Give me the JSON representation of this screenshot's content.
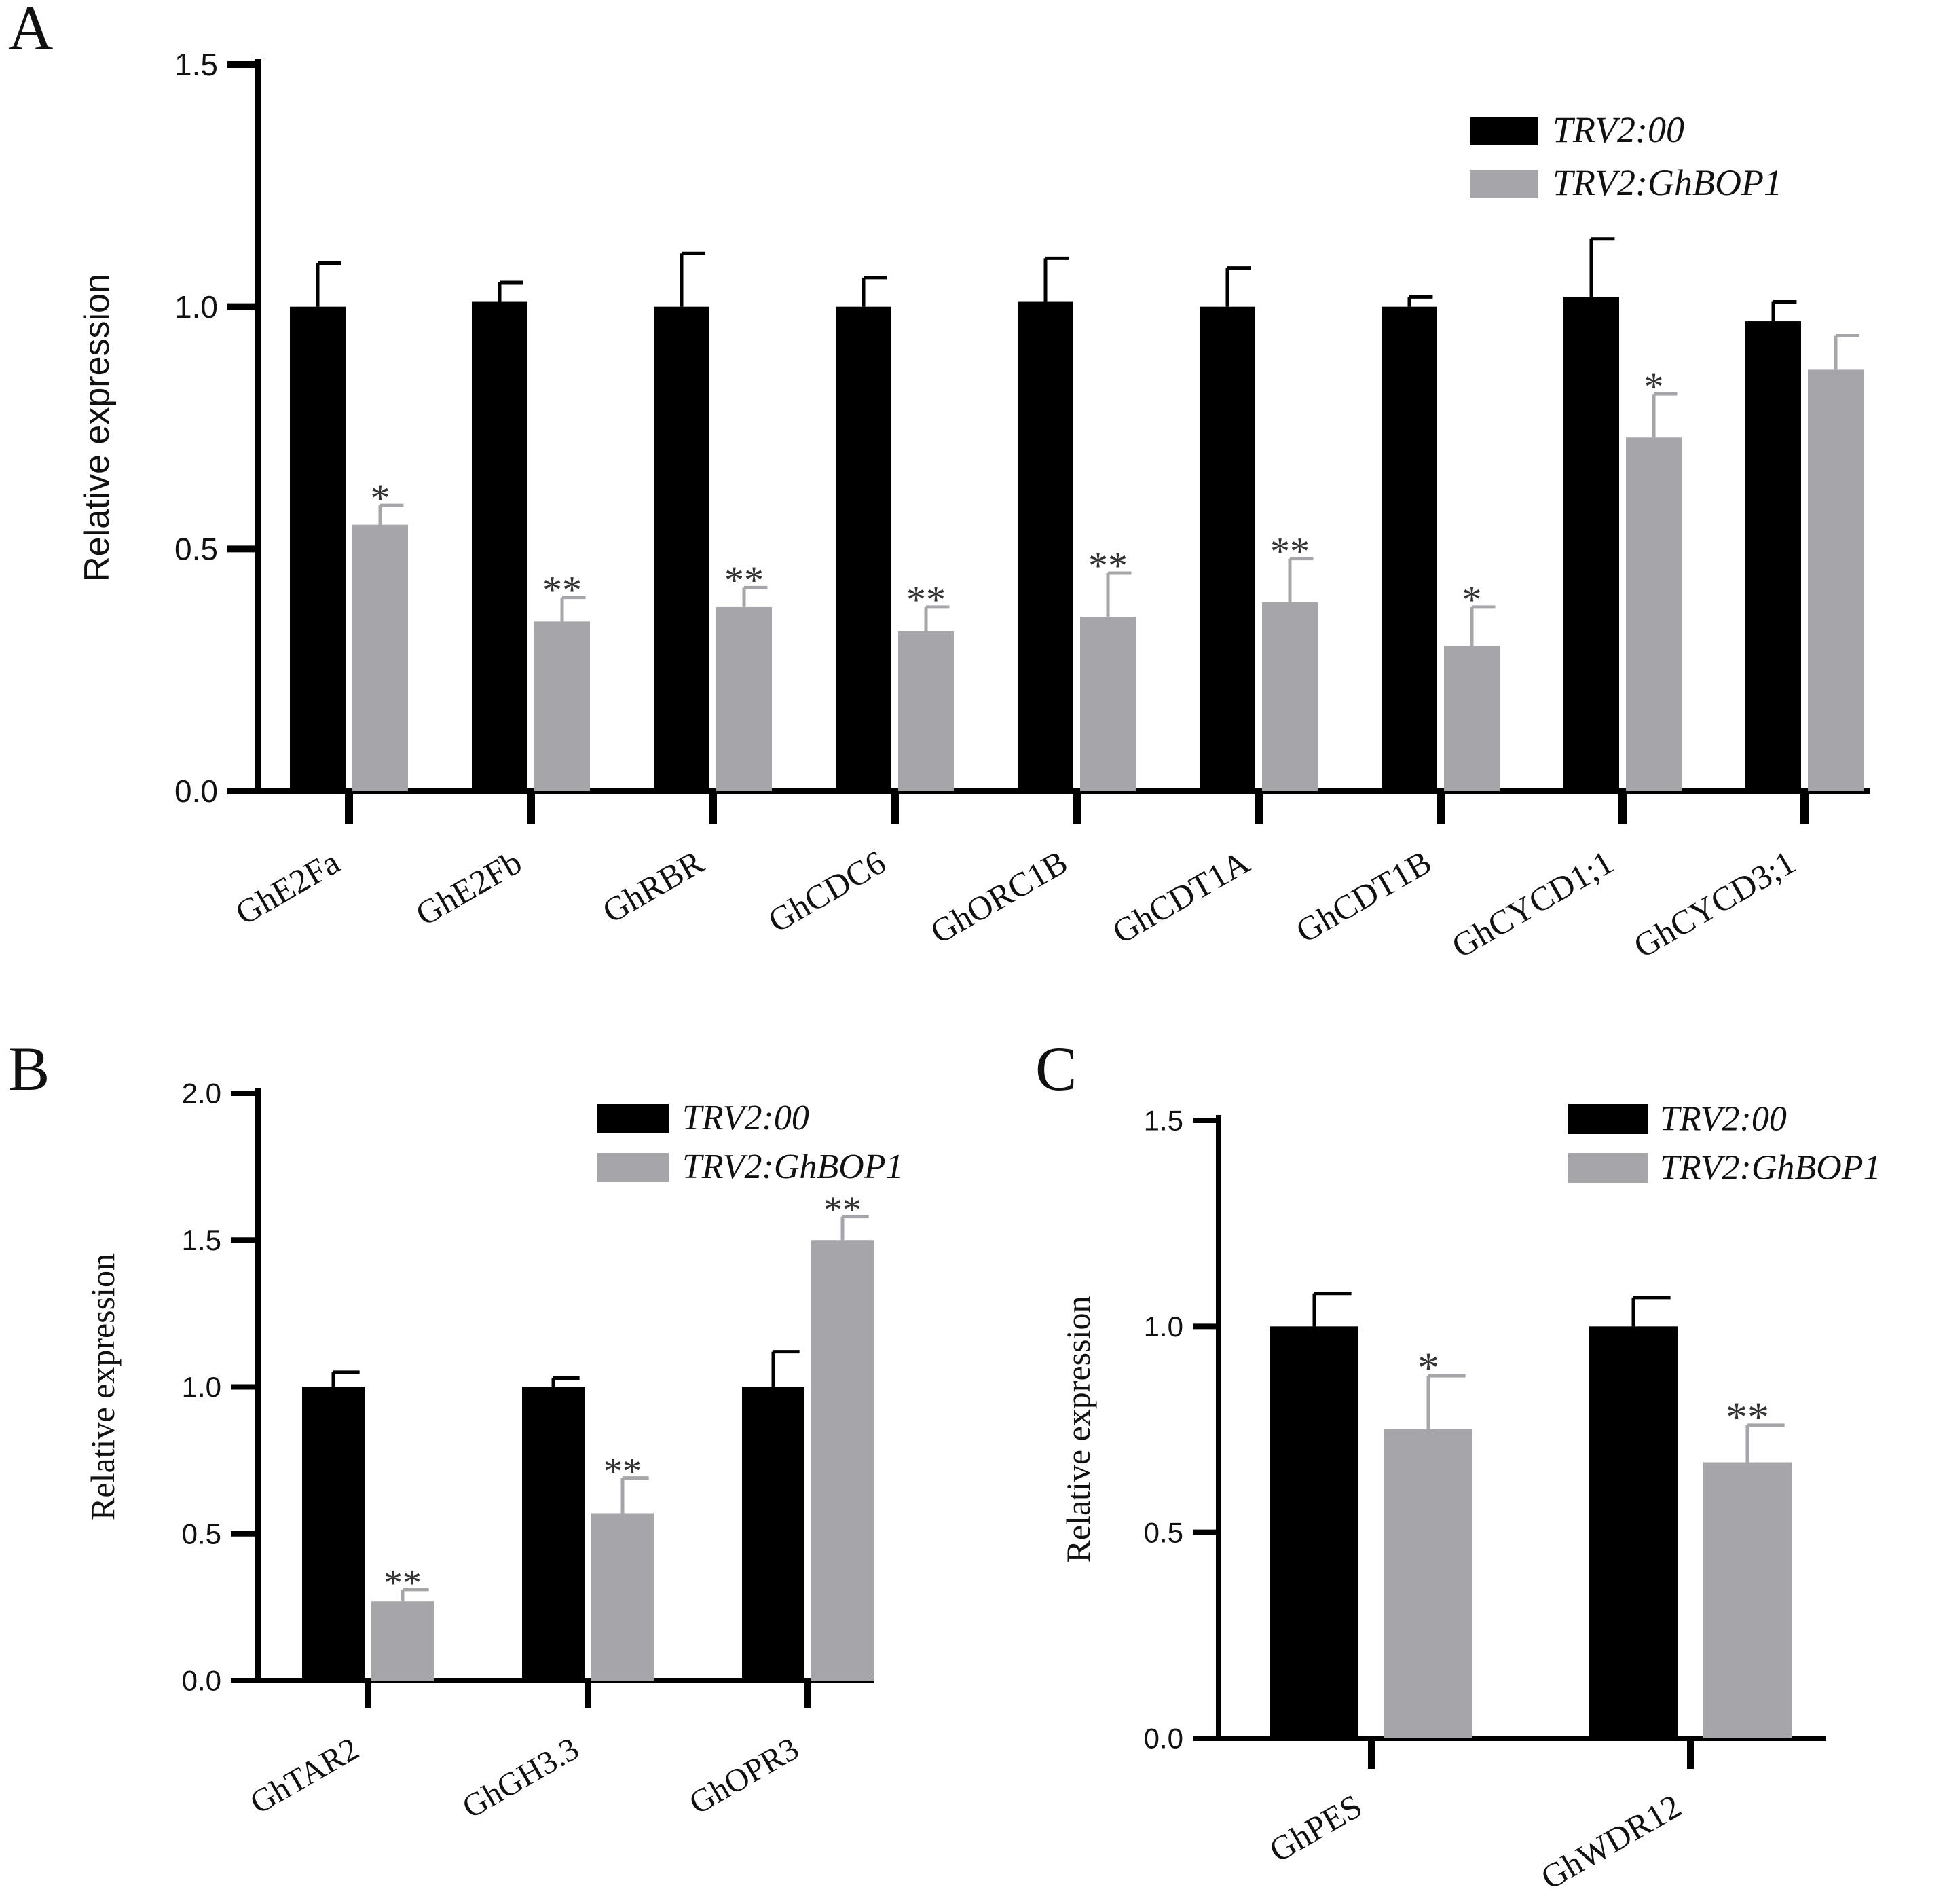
{
  "figure": {
    "colors": {
      "control": "#000000",
      "treatment": "#a6a6aa",
      "axis": "#000000",
      "text": "#111111"
    },
    "legend": {
      "control": "TRV2:00",
      "treatment": "TRV2:GhBOP1"
    }
  },
  "chart_data": [
    {
      "panel": "A",
      "type": "bar",
      "ylabel": "Relative expression",
      "xlabel": "",
      "ylim": [
        0,
        1.5
      ],
      "yticks": [
        "0.0",
        "0.5",
        "1.0",
        "1.5"
      ],
      "categories": [
        "GhE2Fa",
        "GhE2Fb",
        "GhRBR",
        "GhCDC6",
        "GhORC1B",
        "GhCDT1A",
        "GhCDT1B",
        "GhCYCD1;1",
        "GhCYCD3;1"
      ],
      "series": [
        {
          "name": "TRV2:00",
          "values": [
            1.0,
            1.01,
            1.0,
            1.0,
            1.01,
            1.0,
            1.0,
            1.02,
            0.97
          ],
          "errors": [
            0.09,
            0.04,
            0.11,
            0.06,
            0.09,
            0.08,
            0.02,
            0.12,
            0.04
          ]
        },
        {
          "name": "TRV2:GhBOP1",
          "values": [
            0.55,
            0.35,
            0.38,
            0.33,
            0.36,
            0.39,
            0.3,
            0.73,
            0.87
          ],
          "errors": [
            0.04,
            0.05,
            0.04,
            0.05,
            0.09,
            0.09,
            0.08,
            0.09,
            0.07
          ]
        }
      ],
      "significance": [
        "*",
        "**",
        "**",
        "**",
        "**",
        "**",
        "*",
        "*",
        ""
      ],
      "legend_position": "top-right"
    },
    {
      "panel": "B",
      "type": "bar",
      "ylabel": "Relative expression",
      "xlabel": "",
      "ylim": [
        0,
        2.0
      ],
      "yticks": [
        "0.0",
        "0.5",
        "1.0",
        "1.5",
        "2.0"
      ],
      "categories": [
        "GhTAR2",
        "GhGH3.3",
        "GhOPR3"
      ],
      "series": [
        {
          "name": "TRV2:00",
          "values": [
            1.0,
            1.0,
            1.0
          ],
          "errors": [
            0.05,
            0.03,
            0.12
          ]
        },
        {
          "name": "TRV2:GhBOP1",
          "values": [
            0.27,
            0.57,
            1.5
          ],
          "errors": [
            0.04,
            0.12,
            0.08
          ]
        }
      ],
      "significance": [
        "**",
        "**",
        "**"
      ],
      "legend_position": "top-right"
    },
    {
      "panel": "C",
      "type": "bar",
      "ylabel": "Relative expression",
      "xlabel": "",
      "ylim": [
        0,
        1.5
      ],
      "yticks": [
        "0.0",
        "0.5",
        "1.0",
        "1.5"
      ],
      "categories": [
        "GhPES",
        "GhWDR12"
      ],
      "series": [
        {
          "name": "TRV2:00",
          "values": [
            1.0,
            1.0
          ],
          "errors": [
            0.08,
            0.07
          ]
        },
        {
          "name": "TRV2:GhBOP1",
          "values": [
            0.75,
            0.67
          ],
          "errors": [
            0.13,
            0.09
          ]
        }
      ],
      "significance": [
        "*",
        "**"
      ],
      "legend_position": "top-right"
    }
  ]
}
